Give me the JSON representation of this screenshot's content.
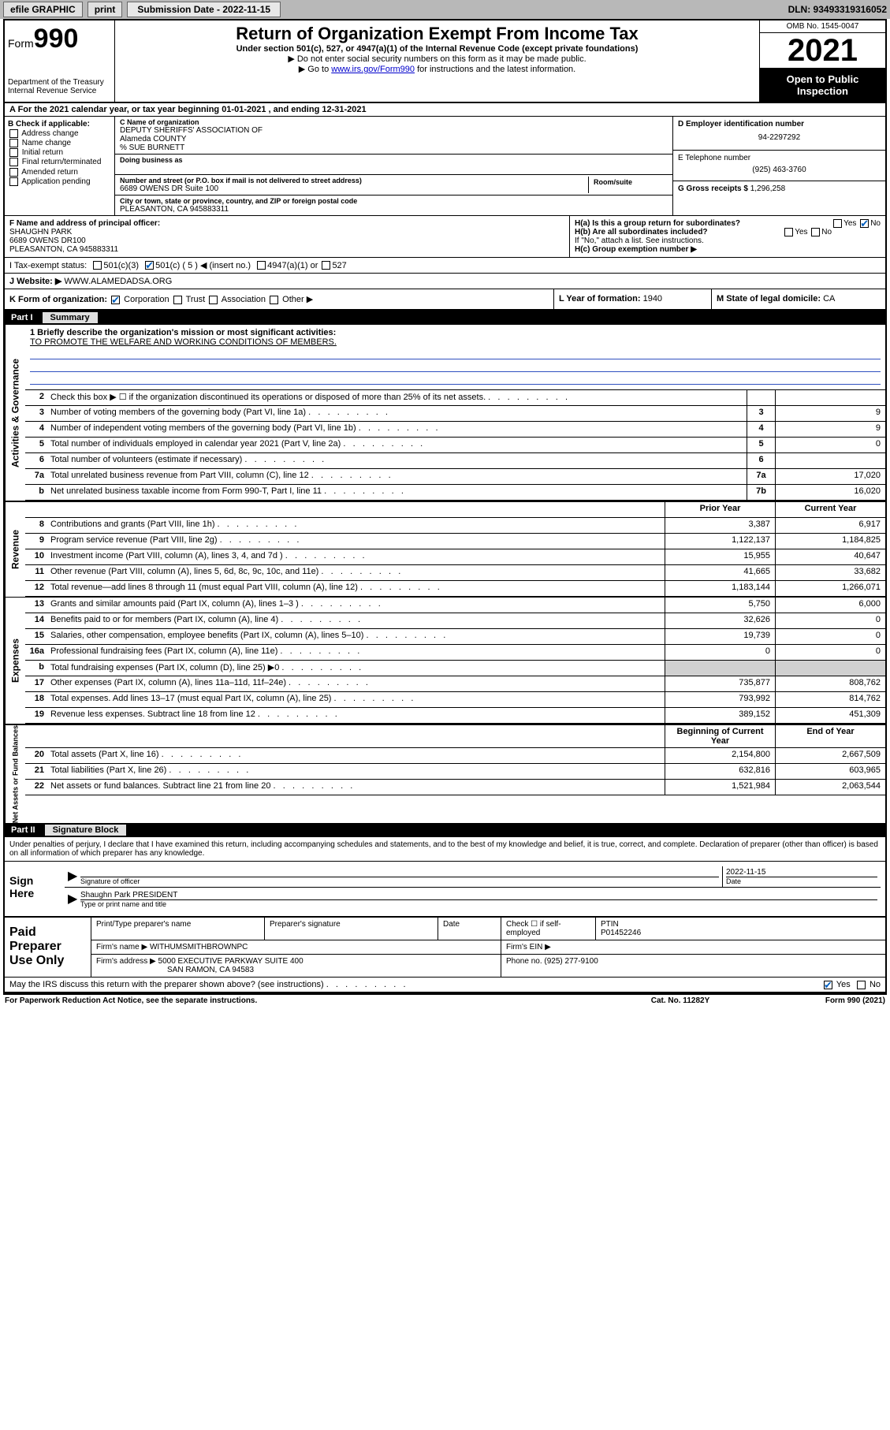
{
  "topbar": {
    "efile": "efile GRAPHIC",
    "print": "print",
    "submission_label": "Submission Date - 2022-11-15",
    "dln": "DLN: 93493319316052"
  },
  "header": {
    "form_label": "Form",
    "form_number": "990",
    "dept": "Department of the Treasury",
    "irs": "Internal Revenue Service",
    "title": "Return of Organization Exempt From Income Tax",
    "subtitle": "Under section 501(c), 527, or 4947(a)(1) of the Internal Revenue Code (except private foundations)",
    "note1": "▶ Do not enter social security numbers on this form as it may be made public.",
    "note2_pre": "▶ Go to ",
    "note2_link": "www.irs.gov/Form990",
    "note2_post": " for instructions and the latest information.",
    "omb": "OMB No. 1545-0047",
    "year": "2021",
    "open": "Open to Public Inspection"
  },
  "lineA": "A For the 2021 calendar year, or tax year beginning 01-01-2021   , and ending 12-31-2021",
  "sectionB": {
    "label": "B Check if applicable:",
    "items": [
      "Address change",
      "Name change",
      "Initial return",
      "Final return/terminated",
      "Amended return",
      "Application pending"
    ]
  },
  "sectionC": {
    "name_label": "C Name of organization",
    "name1": "DEPUTY SHERIFFS' ASSOCIATION OF",
    "name2": "Alameda COUNTY",
    "care_of": "% SUE BURNETT",
    "dba_label": "Doing business as",
    "street_label": "Number and street (or P.O. box if mail is not delivered to street address)",
    "street": "6689 OWENS DR Suite 100",
    "suite_label": "Room/suite",
    "city_label": "City or town, state or province, country, and ZIP or foreign postal code",
    "city": "PLEASANTON, CA  945883311"
  },
  "sectionDE": {
    "d_label": "D Employer identification number",
    "ein": "94-2297292",
    "e_label": "E Telephone number",
    "phone": "(925) 463-3760",
    "g_label": "G Gross receipts $",
    "gross": "1,296,258"
  },
  "sectionF": {
    "label": "F Name and address of principal officer:",
    "name": "SHAUGHN PARK",
    "addr1": "6689 OWENS DR100",
    "addr2": "PLEASANTON, CA  945883311"
  },
  "sectionH": {
    "ha": "H(a)  Is this a group return for subordinates?",
    "hb": "H(b)  Are all subordinates included?",
    "hb_note": "If \"No,\" attach a list. See instructions.",
    "hc": "H(c)  Group exemption number ▶",
    "yes": "Yes",
    "no": "No"
  },
  "lineI": {
    "label": "I   Tax-exempt status:",
    "opt1": "501(c)(3)",
    "opt2_pre": "501(c) ( 5 ) ◀ (insert no.)",
    "opt3": "4947(a)(1) or",
    "opt4": "527"
  },
  "lineJ": {
    "label": "J   Website: ▶",
    "site": "WWW.ALAMEDADSA.ORG"
  },
  "lineK": {
    "label": "K Form of organization:",
    "opts": [
      "Corporation",
      "Trust",
      "Association",
      "Other ▶"
    ]
  },
  "lineL": {
    "label": "L Year of formation:",
    "val": "1940"
  },
  "lineM": {
    "label": "M State of legal domicile:",
    "val": "CA"
  },
  "part1": {
    "tag": "Part I",
    "title": "Summary"
  },
  "mission": {
    "q": "1   Briefly describe the organization's mission or most significant activities:",
    "text": "TO PROMOTE THE WELFARE AND WORKING CONDITIONS OF MEMBERS."
  },
  "gov_rows": [
    {
      "n": "2",
      "d": "Check this box ▶ ☐  if the organization discontinued its operations or disposed of more than 25% of its net assets.",
      "box": "",
      "v": ""
    },
    {
      "n": "3",
      "d": "Number of voting members of the governing body (Part VI, line 1a)",
      "box": "3",
      "v": "9"
    },
    {
      "n": "4",
      "d": "Number of independent voting members of the governing body (Part VI, line 1b)",
      "box": "4",
      "v": "9"
    },
    {
      "n": "5",
      "d": "Total number of individuals employed in calendar year 2021 (Part V, line 2a)",
      "box": "5",
      "v": "0"
    },
    {
      "n": "6",
      "d": "Total number of volunteers (estimate if necessary)",
      "box": "6",
      "v": ""
    },
    {
      "n": "7a",
      "d": "Total unrelated business revenue from Part VIII, column (C), line 12",
      "box": "7a",
      "v": "17,020"
    },
    {
      "n": "b",
      "d": "Net unrelated business taxable income from Form 990-T, Part I, line 11",
      "box": "7b",
      "v": "16,020"
    }
  ],
  "col_headers": {
    "prior": "Prior Year",
    "current": "Current Year"
  },
  "rev_rows": [
    {
      "n": "8",
      "d": "Contributions and grants (Part VIII, line 1h)",
      "p": "3,387",
      "c": "6,917"
    },
    {
      "n": "9",
      "d": "Program service revenue (Part VIII, line 2g)",
      "p": "1,122,137",
      "c": "1,184,825"
    },
    {
      "n": "10",
      "d": "Investment income (Part VIII, column (A), lines 3, 4, and 7d )",
      "p": "15,955",
      "c": "40,647"
    },
    {
      "n": "11",
      "d": "Other revenue (Part VIII, column (A), lines 5, 6d, 8c, 9c, 10c, and 11e)",
      "p": "41,665",
      "c": "33,682"
    },
    {
      "n": "12",
      "d": "Total revenue—add lines 8 through 11 (must equal Part VIII, column (A), line 12)",
      "p": "1,183,144",
      "c": "1,266,071"
    }
  ],
  "exp_rows": [
    {
      "n": "13",
      "d": "Grants and similar amounts paid (Part IX, column (A), lines 1–3 )",
      "p": "5,750",
      "c": "6,000"
    },
    {
      "n": "14",
      "d": "Benefits paid to or for members (Part IX, column (A), line 4)",
      "p": "32,626",
      "c": "0"
    },
    {
      "n": "15",
      "d": "Salaries, other compensation, employee benefits (Part IX, column (A), lines 5–10)",
      "p": "19,739",
      "c": "0"
    },
    {
      "n": "16a",
      "d": "Professional fundraising fees (Part IX, column (A), line 11e)",
      "p": "0",
      "c": "0"
    },
    {
      "n": "b",
      "d": "Total fundraising expenses (Part IX, column (D), line 25) ▶0",
      "p": "shade",
      "c": "shade"
    },
    {
      "n": "17",
      "d": "Other expenses (Part IX, column (A), lines 11a–11d, 11f–24e)",
      "p": "735,877",
      "c": "808,762"
    },
    {
      "n": "18",
      "d": "Total expenses. Add lines 13–17 (must equal Part IX, column (A), line 25)",
      "p": "793,992",
      "c": "814,762"
    },
    {
      "n": "19",
      "d": "Revenue less expenses. Subtract line 18 from line 12",
      "p": "389,152",
      "c": "451,309"
    }
  ],
  "net_headers": {
    "begin": "Beginning of Current Year",
    "end": "End of Year"
  },
  "net_rows": [
    {
      "n": "20",
      "d": "Total assets (Part X, line 16)",
      "p": "2,154,800",
      "c": "2,667,509"
    },
    {
      "n": "21",
      "d": "Total liabilities (Part X, line 26)",
      "p": "632,816",
      "c": "603,965"
    },
    {
      "n": "22",
      "d": "Net assets or fund balances. Subtract line 21 from line 20",
      "p": "1,521,984",
      "c": "2,063,544"
    }
  ],
  "vtabs": {
    "gov": "Activities & Governance",
    "rev": "Revenue",
    "exp": "Expenses",
    "net": "Net Assets or Fund Balances"
  },
  "part2": {
    "tag": "Part II",
    "title": "Signature Block"
  },
  "declare": "Under penalties of perjury, I declare that I have examined this return, including accompanying schedules and statements, and to the best of my knowledge and belief, it is true, correct, and complete. Declaration of preparer (other than officer) is based on all information of which preparer has any knowledge.",
  "sign": {
    "label": "Sign Here",
    "sig_of": "Signature of officer",
    "date_label": "Date",
    "date": "2022-11-15",
    "name": "Shaughn Park PRESIDENT",
    "name_label": "Type or print name and title"
  },
  "paid": {
    "label": "Paid Preparer Use Only",
    "h1": "Print/Type preparer's name",
    "h2": "Preparer's signature",
    "h3": "Date",
    "h4_pre": "Check ☐ if self-employed",
    "h5": "PTIN",
    "ptin": "P01452246",
    "firm_label": "Firm's name    ▶",
    "firm": "WITHUMSMITHBROWNPC",
    "ein_label": "Firm's EIN ▶",
    "addr_label": "Firm's address ▶",
    "addr1": "5000 EXECUTIVE PARKWAY SUITE 400",
    "addr2": "SAN RAMON, CA  94583",
    "phone_label": "Phone no.",
    "phone": "(925) 277-9100"
  },
  "discuss": {
    "q": "May the IRS discuss this return with the preparer shown above? (see instructions)",
    "yes": "Yes",
    "no": "No"
  },
  "footer": {
    "left": "For Paperwork Reduction Act Notice, see the separate instructions.",
    "mid": "Cat. No. 11282Y",
    "right": "Form 990 (2021)"
  },
  "colors": {
    "topbar_bg": "#b8b8b8",
    "link": "#0000cc",
    "check": "#0060c0",
    "shade": "#d0d0d0"
  }
}
